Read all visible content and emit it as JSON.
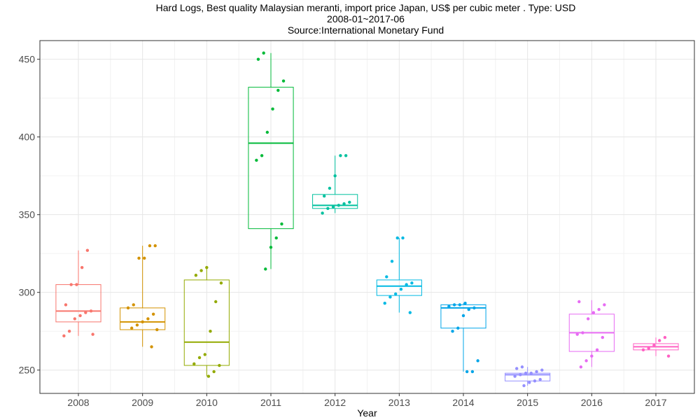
{
  "chart_data": {
    "type": "box",
    "title": "Hard Logs, Best quality Malaysian meranti, import price Japan, US$ per cubic meter . Type: USD",
    "subtitle": "2008-01~2017-06",
    "source": "Source:International Monetary Fund",
    "xlabel": "Year",
    "ylabel": "",
    "ylim": [
      235,
      462
    ],
    "yticks": [
      250,
      300,
      350,
      400,
      450
    ],
    "grid": true,
    "legend": "none",
    "categories": [
      "2008",
      "2009",
      "2010",
      "2011",
      "2012",
      "2013",
      "2014",
      "2015",
      "2016",
      "2017"
    ],
    "colors": [
      "#F8766D",
      "#D39200",
      "#93AA00",
      "#00BA38",
      "#00C19F",
      "#00B9E3",
      "#00A5E8",
      "#9590FF",
      "#E76BF3",
      "#FF61C3"
    ],
    "boxes": [
      {
        "min": 272,
        "q1": 281,
        "median": 288,
        "q3": 305,
        "max": 327
      },
      {
        "min": 265,
        "q1": 276,
        "median": 281,
        "q3": 290,
        "max": 330
      },
      {
        "min": 246,
        "q1": 253,
        "median": 268,
        "q3": 308,
        "max": 317
      },
      {
        "min": 315,
        "q1": 341,
        "median": 396,
        "q3": 432,
        "max": 454
      },
      {
        "min": 351,
        "q1": 354,
        "median": 356,
        "q3": 363,
        "max": 388
      },
      {
        "min": 287,
        "q1": 298,
        "median": 304,
        "q3": 308,
        "max": 335
      },
      {
        "min": 249,
        "q1": 277,
        "median": 290,
        "q3": 292,
        "max": 293
      },
      {
        "min": 240,
        "q1": 243,
        "median": 247,
        "q3": 248,
        "max": 252
      },
      {
        "min": 252,
        "q1": 262,
        "median": 274,
        "q3": 286,
        "max": 295
      },
      {
        "min": 259,
        "q1": 263,
        "median": 265,
        "q3": 267,
        "max": 271
      }
    ],
    "points": [
      [
        272,
        275,
        283,
        285,
        287,
        288,
        292,
        305,
        305,
        316,
        327,
        273
      ],
      [
        265,
        276,
        277,
        279,
        281,
        283,
        286,
        290,
        292,
        322,
        322,
        330,
        330
      ],
      [
        246,
        249,
        253,
        254,
        258,
        260,
        275,
        294,
        306,
        311,
        314,
        316
      ],
      [
        315,
        329,
        335,
        344,
        385,
        388,
        403,
        418,
        430,
        436,
        450,
        454
      ],
      [
        351,
        354,
        355,
        356,
        357,
        358,
        362,
        367,
        375,
        388,
        388
      ],
      [
        287,
        293,
        297,
        299,
        302,
        305,
        306,
        310,
        320,
        335,
        335
      ],
      [
        249,
        249,
        256,
        275,
        277,
        285,
        289,
        290,
        291,
        292,
        292,
        293
      ],
      [
        240,
        242,
        243,
        244,
        246,
        247,
        248,
        248,
        249,
        250,
        251,
        252
      ],
      [
        252,
        256,
        259,
        263,
        271,
        273,
        274,
        283,
        287,
        289,
        292,
        294
      ],
      [
        259,
        263,
        264,
        266,
        269,
        271
      ]
    ]
  }
}
